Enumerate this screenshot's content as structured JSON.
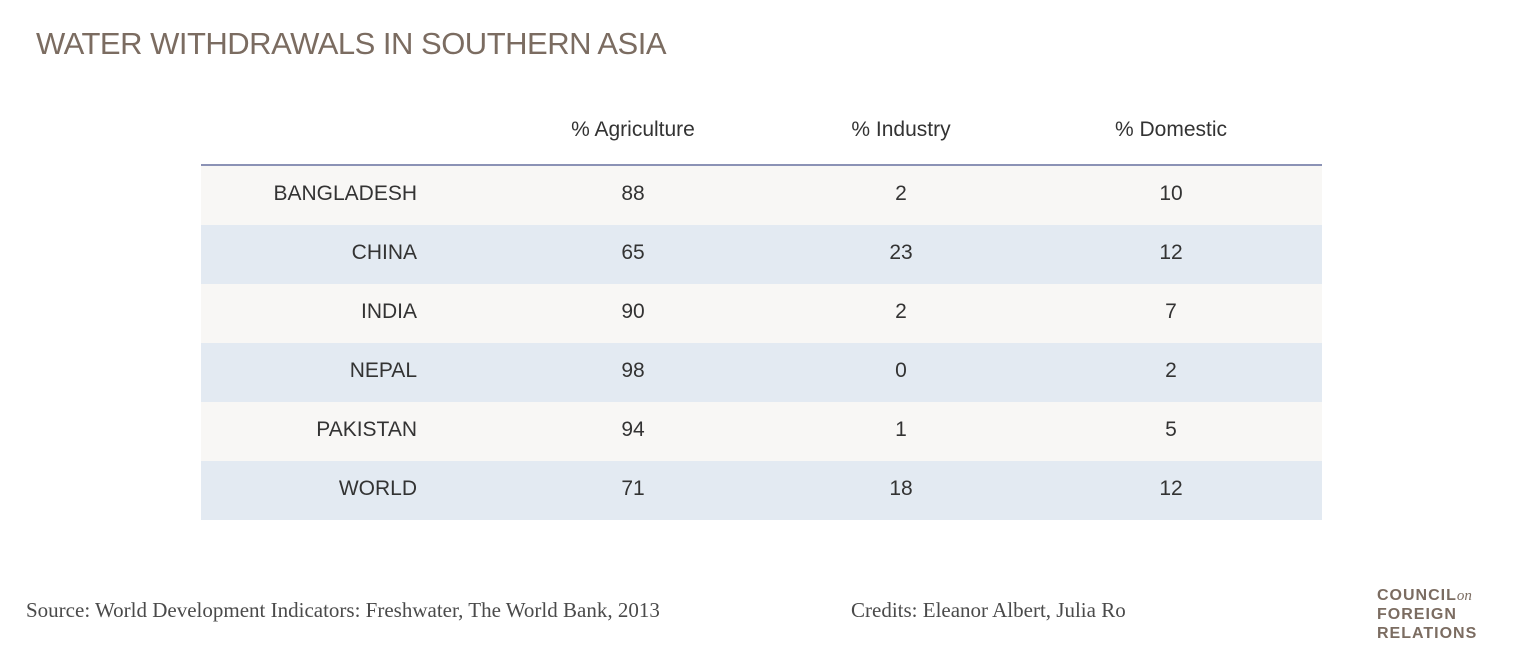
{
  "title": "WATER WITHDRAWALS IN SOUTHERN ASIA",
  "chart_data": {
    "type": "table",
    "columns": [
      "% Agriculture",
      "% Industry",
      "% Domestic"
    ],
    "rows": [
      {
        "label": "BANGLADESH",
        "values": [
          "88",
          "2",
          "10"
        ]
      },
      {
        "label": "CHINA",
        "values": [
          "65",
          "23",
          "12"
        ]
      },
      {
        "label": "INDIA",
        "values": [
          "90",
          "2",
          "7"
        ]
      },
      {
        "label": "NEPAL",
        "values": [
          "98",
          "0",
          "2"
        ]
      },
      {
        "label": "PAKISTAN",
        "values": [
          "94",
          "1",
          "5"
        ]
      },
      {
        "label": "WORLD",
        "values": [
          "71",
          "18",
          "12"
        ]
      }
    ]
  },
  "footer": {
    "source": "Source: World Development Indicators: Freshwater, The World Bank, 2013",
    "credits": "Credits: Eleanor Albert, Julia Ro"
  },
  "logo": {
    "line1": "COUNCIL",
    "line1_suffix": "on",
    "line2": "FOREIGN",
    "line3": "RELATIONS"
  },
  "colors": {
    "title": "#7b6c61",
    "row_odd": "#f8f7f5",
    "row_even": "#e3eaf2",
    "header_rule": "#8b92b5"
  }
}
